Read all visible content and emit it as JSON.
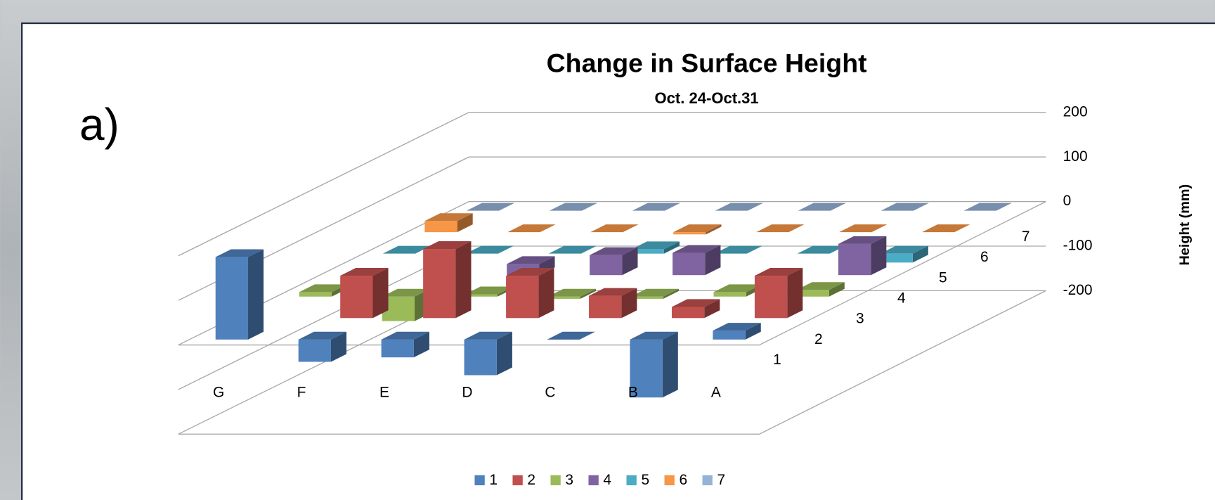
{
  "panel_label": "a)",
  "chart_data": {
    "type": "bar3d",
    "title": "Change in Surface Height",
    "subtitle": "Oct. 24-Oct.31",
    "y_label": "Height (mm)",
    "categories": [
      "G",
      "F",
      "E",
      "D",
      "C",
      "B",
      "A"
    ],
    "ylim": [
      -200,
      200
    ],
    "yticks": [
      200,
      100,
      0,
      -100,
      -200
    ],
    "grid": true,
    "legend": "bottom",
    "series": [
      {
        "name": "1",
        "color": "#4f81bd",
        "values": [
          185,
          -50,
          -40,
          -80,
          0,
          -130,
          20
        ]
      },
      {
        "name": "2",
        "color": "#c0504d",
        "values": [
          null,
          95,
          155,
          95,
          50,
          25,
          95
        ]
      },
      {
        "name": "3",
        "color": "#9bbb59",
        "values": [
          10,
          -55,
          5,
          -5,
          -5,
          10,
          15
        ]
      },
      {
        "name": "4",
        "color": "#8064a2",
        "values": [
          null,
          null,
          25,
          45,
          50,
          null,
          70
        ]
      },
      {
        "name": "5",
        "color": "#4bacc6",
        "values": [
          0,
          0,
          0,
          10,
          0,
          0,
          -20
        ]
      },
      {
        "name": "6",
        "color": "#f79646",
        "values": [
          25,
          0,
          0,
          -5,
          0,
          0,
          0
        ]
      },
      {
        "name": "7",
        "color": "#95b3d7",
        "values": [
          0,
          0,
          0,
          0,
          0,
          0,
          0
        ]
      }
    ]
  }
}
